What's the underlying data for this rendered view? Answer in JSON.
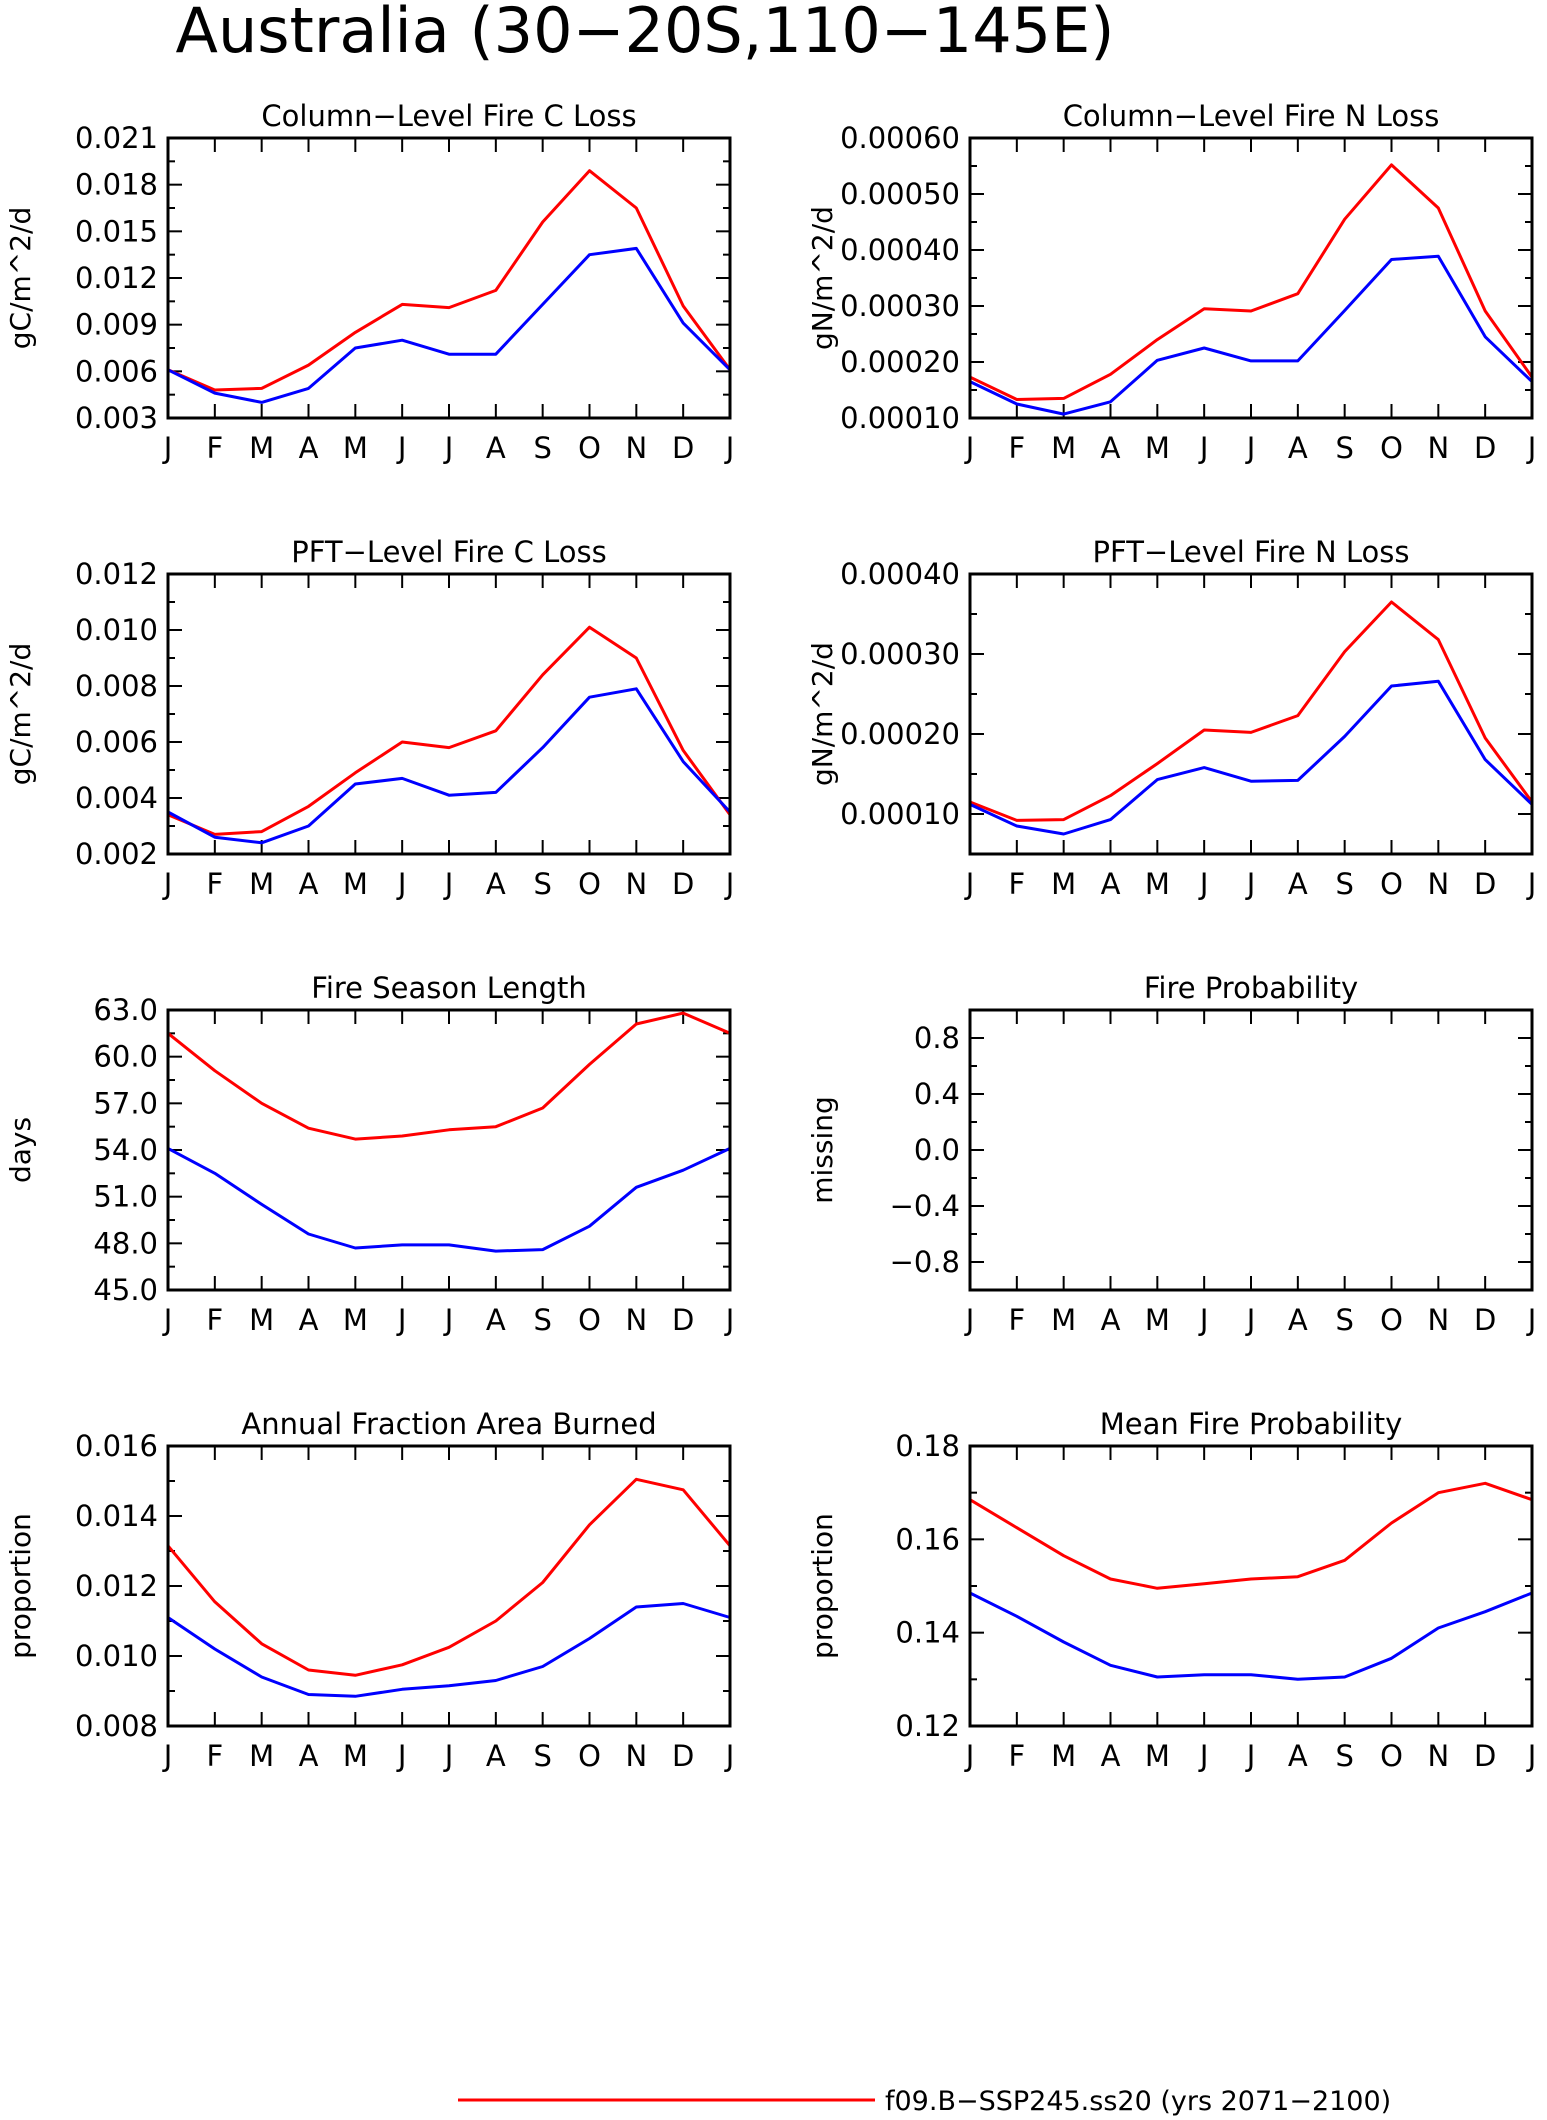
{
  "title": "Australia (30−20S,110−145E)",
  "legend": [
    {
      "label": "f09.B−SSP245.ss20 (yrs 2071−2100)",
      "color": "#ff0000"
    }
  ],
  "chart_data": [
    {
      "type": "line",
      "title": "Column−Level Fire C Loss",
      "ylabel": "gC/m^2/d",
      "categories": [
        "J",
        "F",
        "M",
        "A",
        "M",
        "J",
        "J",
        "A",
        "S",
        "O",
        "N",
        "D",
        "J"
      ],
      "ylim": [
        0.003,
        0.021
      ],
      "yticks": [
        "0.003",
        "0.006",
        "0.009",
        "0.012",
        "0.015",
        "0.018",
        "0.021"
      ],
      "series": [
        {
          "color": "#ff0000",
          "values": [
            0.0061,
            0.0048,
            0.0049,
            0.0064,
            0.0085,
            0.0103,
            0.0101,
            0.0112,
            0.0156,
            0.0189,
            0.0165,
            0.0102,
            0.0061
          ]
        },
        {
          "color": "#0000ff",
          "values": [
            0.0061,
            0.0046,
            0.004,
            0.0049,
            0.0075,
            0.008,
            0.0071,
            0.0071,
            0.0103,
            0.0135,
            0.0139,
            0.0091,
            0.0061
          ]
        }
      ]
    },
    {
      "type": "line",
      "title": "Column−Level Fire N Loss",
      "ylabel": "gN/m^2/d",
      "categories": [
        "J",
        "F",
        "M",
        "A",
        "M",
        "J",
        "J",
        "A",
        "S",
        "O",
        "N",
        "D",
        "J"
      ],
      "ylim": [
        0.0001,
        0.0006
      ],
      "yticks": [
        "0.00010",
        "0.00020",
        "0.00030",
        "0.00040",
        "0.00050",
        "0.00060"
      ],
      "series": [
        {
          "color": "#ff0000",
          "values": [
            0.000173,
            0.000133,
            0.000135,
            0.000178,
            0.00024,
            0.000295,
            0.000291,
            0.000322,
            0.000455,
            0.000552,
            0.000475,
            0.000291,
            0.000173
          ]
        },
        {
          "color": "#0000ff",
          "values": [
            0.000165,
            0.000125,
            0.000107,
            0.000129,
            0.000203,
            0.000225,
            0.000202,
            0.000202,
            0.000292,
            0.000383,
            0.000389,
            0.000245,
            0.000165
          ]
        }
      ]
    },
    {
      "type": "line",
      "title": "PFT−Level Fire C Loss",
      "ylabel": "gC/m^2/d",
      "categories": [
        "J",
        "F",
        "M",
        "A",
        "M",
        "J",
        "J",
        "A",
        "S",
        "O",
        "N",
        "D",
        "J"
      ],
      "ylim": [
        0.002,
        0.012
      ],
      "yticks": [
        "0.002",
        "0.004",
        "0.006",
        "0.008",
        "0.010",
        "0.012"
      ],
      "series": [
        {
          "color": "#ff0000",
          "values": [
            0.0034,
            0.0027,
            0.0028,
            0.0037,
            0.0049,
            0.006,
            0.0058,
            0.0064,
            0.0084,
            0.0101,
            0.009,
            0.0057,
            0.0034
          ]
        },
        {
          "color": "#0000ff",
          "values": [
            0.0035,
            0.0026,
            0.0024,
            0.003,
            0.0045,
            0.0047,
            0.0041,
            0.0042,
            0.0058,
            0.0076,
            0.0079,
            0.0053,
            0.0035
          ]
        }
      ]
    },
    {
      "type": "line",
      "title": "PFT−Level Fire N Loss",
      "ylabel": "gN/m^2/d",
      "categories": [
        "J",
        "F",
        "M",
        "A",
        "M",
        "J",
        "J",
        "A",
        "S",
        "O",
        "N",
        "D",
        "J"
      ],
      "ylim": [
        5e-05,
        0.0004
      ],
      "yticks": [
        "0.00010",
        "0.00020",
        "0.00030",
        "0.00040"
      ],
      "ytick_values": [
        0.0001,
        0.0002,
        0.0003,
        0.0004
      ],
      "series": [
        {
          "color": "#ff0000",
          "values": [
            0.000115,
            9.2e-05,
            9.3e-05,
            0.000123,
            0.000163,
            0.000205,
            0.000202,
            0.000223,
            0.000303,
            0.000365,
            0.000318,
            0.000195,
            0.000115
          ]
        },
        {
          "color": "#0000ff",
          "values": [
            0.000112,
            8.5e-05,
            7.5e-05,
            9.3e-05,
            0.000143,
            0.000158,
            0.000141,
            0.000142,
            0.000197,
            0.00026,
            0.000266,
            0.000168,
            0.000112
          ]
        }
      ]
    },
    {
      "type": "line",
      "title": "Fire Season Length",
      "ylabel": "days",
      "categories": [
        "J",
        "F",
        "M",
        "A",
        "M",
        "J",
        "J",
        "A",
        "S",
        "O",
        "N",
        "D",
        "J"
      ],
      "ylim": [
        45.0,
        63.0
      ],
      "yticks": [
        "45.0",
        "48.0",
        "51.0",
        "54.0",
        "57.0",
        "60.0",
        "63.0"
      ],
      "series": [
        {
          "color": "#ff0000",
          "values": [
            61.5,
            59.1,
            57.0,
            55.4,
            54.7,
            54.9,
            55.3,
            55.5,
            56.7,
            59.5,
            62.1,
            62.8,
            61.5
          ]
        },
        {
          "color": "#0000ff",
          "values": [
            54.1,
            52.5,
            50.5,
            48.6,
            47.7,
            47.9,
            47.9,
            47.5,
            47.6,
            49.1,
            51.6,
            52.7,
            54.1
          ]
        }
      ]
    },
    {
      "type": "line",
      "title": "Fire Probability",
      "ylabel": "missing",
      "categories": [
        "J",
        "F",
        "M",
        "A",
        "M",
        "J",
        "J",
        "A",
        "S",
        "O",
        "N",
        "D",
        "J"
      ],
      "ylim": [
        -1.0,
        1.0
      ],
      "yticks": [
        "−0.8",
        "−0.4",
        "0.0",
        "0.4",
        "0.8"
      ],
      "ytick_values": [
        -0.8,
        -0.4,
        0.0,
        0.4,
        0.8
      ],
      "series": []
    },
    {
      "type": "line",
      "title": "Annual Fraction Area Burned",
      "ylabel": "proportion",
      "categories": [
        "J",
        "F",
        "M",
        "A",
        "M",
        "J",
        "J",
        "A",
        "S",
        "O",
        "N",
        "D",
        "J"
      ],
      "ylim": [
        0.008,
        0.016
      ],
      "yticks": [
        "0.008",
        "0.010",
        "0.012",
        "0.014",
        "0.016"
      ],
      "series": [
        {
          "color": "#ff0000",
          "values": [
            0.01315,
            0.01155,
            0.01035,
            0.0096,
            0.00945,
            0.00975,
            0.01025,
            0.011,
            0.0121,
            0.01375,
            0.01505,
            0.01475,
            0.01315
          ]
        },
        {
          "color": "#0000ff",
          "values": [
            0.0111,
            0.0102,
            0.0094,
            0.0089,
            0.00885,
            0.00905,
            0.00915,
            0.0093,
            0.0097,
            0.0105,
            0.0114,
            0.0115,
            0.0111
          ]
        }
      ]
    },
    {
      "type": "line",
      "title": "Mean Fire Probability",
      "ylabel": "proportion",
      "categories": [
        "J",
        "F",
        "M",
        "A",
        "M",
        "J",
        "J",
        "A",
        "S",
        "O",
        "N",
        "D",
        "J"
      ],
      "ylim": [
        0.12,
        0.18
      ],
      "yticks": [
        "0.12",
        "0.14",
        "0.16",
        "0.18"
      ],
      "series": [
        {
          "color": "#ff0000",
          "values": [
            0.1685,
            0.1625,
            0.1565,
            0.1515,
            0.1495,
            0.1505,
            0.1515,
            0.152,
            0.1555,
            0.1635,
            0.17,
            0.172,
            0.1685
          ]
        },
        {
          "color": "#0000ff",
          "values": [
            0.1485,
            0.1435,
            0.138,
            0.133,
            0.1305,
            0.131,
            0.131,
            0.13,
            0.1305,
            0.1345,
            0.141,
            0.1445,
            0.1485
          ]
        }
      ]
    }
  ]
}
